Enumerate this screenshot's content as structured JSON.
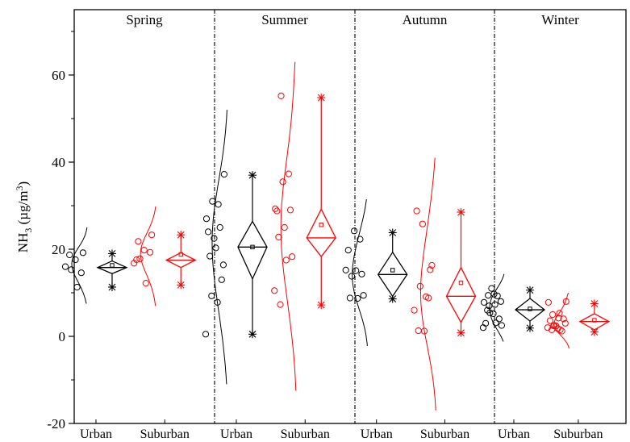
{
  "chart_data": {
    "type": "box",
    "ylabel_main": "NH",
    "ylabel_sub": "3",
    "ylabel_unit_open": " (µg/m",
    "ylabel_unit_sup": "3",
    "ylabel_unit_close": ")",
    "ylim": [
      -20,
      75
    ],
    "yticks": [
      -20,
      0,
      20,
      40,
      60
    ],
    "colors": {
      "Urban": "#000000",
      "Suburban": "#ff0000"
    },
    "seasons": [
      {
        "name": "Spring",
        "groups": [
          {
            "label": "Urban",
            "min": 11.3,
            "max": 19,
            "q1": 14.4,
            "median": 15.8,
            "q3": 17.3,
            "mean": 16.3,
            "points": [
              16,
              15.3,
              11.3,
              19.2,
              18.7,
              17.6,
              14.6
            ],
            "dist_range": [
              7.5,
              25
            ]
          },
          {
            "label": "Suburban",
            "min": 11.8,
            "max": 23.3,
            "q1": 15.8,
            "median": 17.5,
            "q3": 19.2,
            "mean": 18.8,
            "points": [
              16.8,
              17.8,
              12.2,
              23.3,
              21.8,
              19.8,
              19.3,
              17.6
            ],
            "dist_range": [
              7,
              29.8
            ]
          }
        ]
      },
      {
        "name": "Summer",
        "groups": [
          {
            "label": "Urban",
            "min": 0.5,
            "max": 37,
            "q1": 13.2,
            "median": 20.5,
            "q3": 26.4,
            "mean": 20.5,
            "points": [
              0.5,
              9.3,
              7.8,
              16.4,
              18.4,
              20.3,
              13,
              24,
              22.5,
              25,
              27,
              31,
              30.3,
              37.2
            ],
            "dist_range": [
              -11,
              52
            ]
          },
          {
            "label": "Suburban",
            "min": 7.2,
            "max": 54.8,
            "q1": 18.3,
            "median": 22.6,
            "q3": 29.2,
            "mean": 25.6,
            "points": [
              10.5,
              7.3,
              17.5,
              18.3,
              22.8,
              25,
              29,
              28.8,
              35.5,
              37.3,
              29.3,
              55.2
            ],
            "dist_range": [
              -12.5,
              63
            ]
          }
        ]
      },
      {
        "name": "Autumn",
        "groups": [
          {
            "label": "Urban",
            "min": 8.6,
            "max": 23.8,
            "q1": 9.2,
            "median": 14.2,
            "q3": 19.3,
            "mean": 15.2,
            "points": [
              15.2,
              13.8,
              8.7,
              9.4,
              8.8,
              15.1,
              14.3,
              19.8,
              24.2,
              22.3
            ],
            "dist_range": [
              -2.2,
              31.5
            ]
          },
          {
            "label": "Suburban",
            "min": 0.8,
            "max": 28.5,
            "q1": 3.2,
            "median": 9.2,
            "q3": 15.8,
            "mean": 12.3,
            "points": [
              6,
              11.5,
              9.1,
              16.3,
              1.3,
              1.2,
              15.3,
              28.8,
              25.8,
              8.8
            ],
            "dist_range": [
              -17,
              41
            ]
          }
        ]
      },
      {
        "name": "Winter",
        "groups": [
          {
            "label": "Urban",
            "min": 1.9,
            "max": 10.6,
            "q1": 3.5,
            "median": 6.1,
            "q3": 8.7,
            "mean": 6.3,
            "points": [
              2,
              7,
              7.3,
              8,
              6,
              5.2,
              4,
              3,
              11,
              9.3,
              7.8,
              5.4,
              3.1,
              2.5,
              9.4,
              9.7
            ],
            "dist_range": [
              -1.2,
              14.3
            ]
          },
          {
            "label": "Suburban",
            "min": 1,
            "max": 7.5,
            "q1": 1.5,
            "median": 3.4,
            "q3": 5.2,
            "mean": 3.7,
            "points": [
              2,
              2.4,
              5.3,
              3,
              1.5,
              1.8,
              4,
              3.6,
              2.4,
              1.2,
              7.8,
              2.5,
              1.5,
              8,
              5,
              4.2
            ],
            "dist_range": [
              -2.8,
              10
            ]
          }
        ]
      }
    ]
  }
}
